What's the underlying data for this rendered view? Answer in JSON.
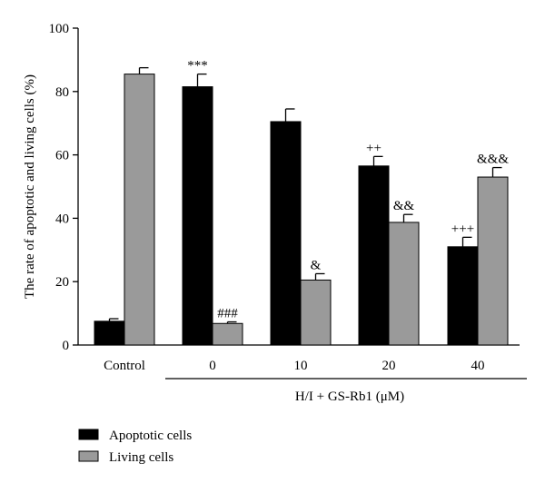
{
  "chart_data": {
    "type": "bar",
    "title": "",
    "ylabel": "The rate of apoptotic and living cells (%)",
    "xlabel": "",
    "ylim": [
      0,
      100
    ],
    "yticks": [
      0,
      20,
      40,
      60,
      80,
      100
    ],
    "categories": [
      "Control",
      "0",
      "10",
      "20",
      "40"
    ],
    "group_label": "H/I + GS-Rb1 (μM)",
    "legend_position": "bottom-left",
    "series": [
      {
        "name": "Apoptotic cells",
        "color": "#000000",
        "values": [
          7.5,
          81.5,
          70.5,
          56.5,
          31
        ],
        "errors": [
          0.8,
          4,
          4,
          3,
          3
        ],
        "annotations": [
          "",
          "***",
          "",
          "++",
          "+++"
        ]
      },
      {
        "name": "Living cells",
        "color": "#9a9a9a",
        "values": [
          85.5,
          6.8,
          20.5,
          38.7,
          53
        ],
        "errors": [
          2,
          0.5,
          2,
          2.5,
          3
        ],
        "annotations": [
          "",
          "###",
          "&",
          "&&",
          "&&&"
        ]
      }
    ]
  }
}
